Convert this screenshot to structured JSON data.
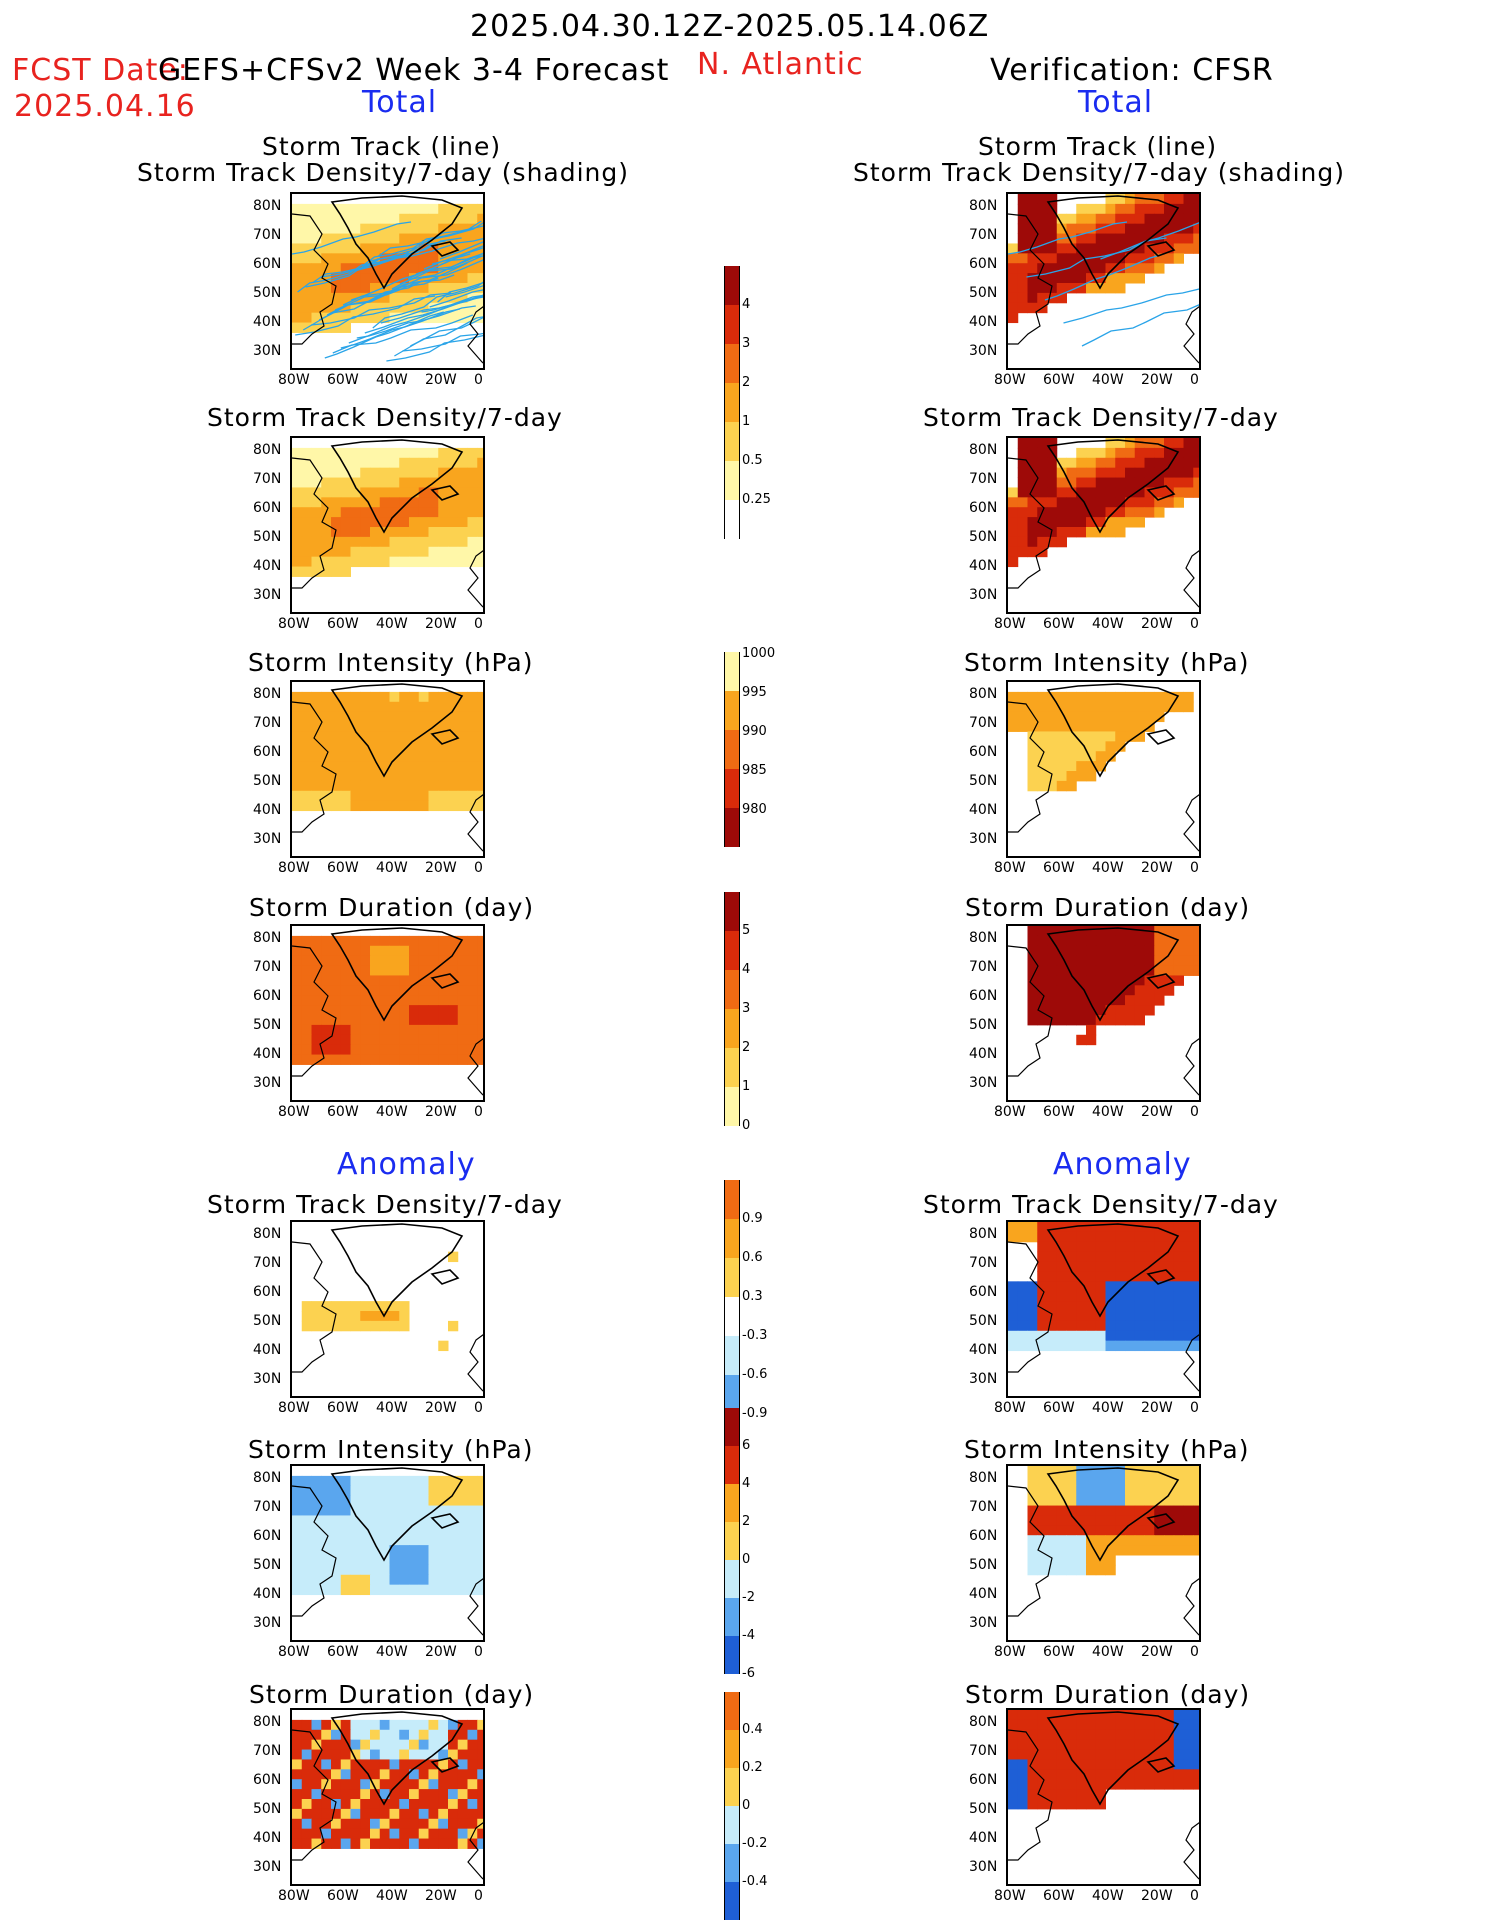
{
  "header": {
    "period": "2025.04.30.12Z-2025.05.14.06Z",
    "fcst_date_label": "FCST Date:",
    "fcst_date": "2025.04.16",
    "forecast_name": "GEFS+CFSv2 Week 3-4 Forecast",
    "region": "N. Atlantic",
    "verification": "Verification: CFSR",
    "total_left": "Total",
    "total_right": "Total",
    "anomaly_left": "Anomaly",
    "anomaly_right": "Anomaly"
  },
  "axes": {
    "y_ticks": [
      "80N",
      "70N",
      "60N",
      "50N",
      "40N",
      "30N"
    ],
    "x_ticks": [
      "80W",
      "60W",
      "40W",
      "20W",
      "0"
    ]
  },
  "panels": {
    "p1_title_a": "Storm Track (line)",
    "p1_title_b": "Storm Track Density/7-day (shading)",
    "density": "Storm Track Density/7-day",
    "intensity": "Storm Intensity (hPa)",
    "duration": "Storm Duration (day)"
  },
  "colorbars": {
    "density": [
      "4",
      "3",
      "2",
      "1",
      "0.5",
      "0.25"
    ],
    "intensity": [
      "1000",
      "995",
      "990",
      "985",
      "980"
    ],
    "duration": [
      "5",
      "4",
      "3",
      "2",
      "1",
      "0"
    ],
    "density_anom": [
      "0.9",
      "0.6",
      "0.3",
      "-0.3",
      "-0.6",
      "-0.9"
    ],
    "intensity_anom": [
      "6",
      "4",
      "2",
      "0",
      "-2",
      "-4",
      "-6"
    ],
    "duration_anom": [
      "0.4",
      "0.2",
      "0",
      "-0.2",
      "-0.4"
    ]
  },
  "colors": {
    "lightyellow": "#fff7a8",
    "yellow": "#fcd250",
    "orange": "#f9a51e",
    "darkorange": "#f06b13",
    "red": "#d92b0a",
    "darkred": "#9e0a08",
    "lightblue": "#c6ecfa",
    "blue": "#5aa6ee",
    "darkblue": "#1e5fd6",
    "track": "#2aa4e8"
  }
}
